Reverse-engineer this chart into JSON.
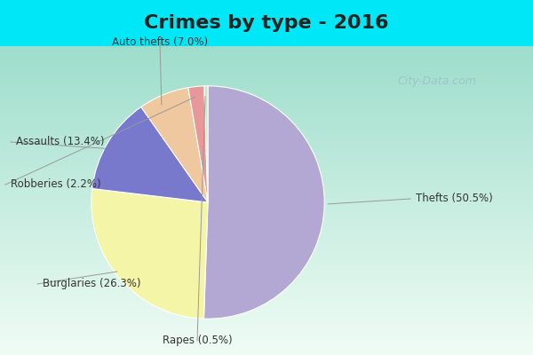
{
  "title": "Crimes by type - 2016",
  "labels": [
    "Thefts",
    "Burglaries",
    "Assaults",
    "Auto thefts",
    "Robberies",
    "Rapes"
  ],
  "values": [
    50.5,
    26.3,
    13.4,
    7.0,
    2.2,
    0.5
  ],
  "colors": [
    "#b3a8d4",
    "#f5f5a8",
    "#7878cc",
    "#f0c8a0",
    "#e89898",
    "#c8e8c8"
  ],
  "label_texts": [
    "Thefts (50.5%)",
    "Burglaries (26.3%)",
    "Assaults (13.4%)",
    "Auto thefts (7.0%)",
    "Robberies (2.2%)",
    "Rapes (0.5%)"
  ],
  "bg_top": "#00e8f8",
  "bg_gradient_top": "#e8f8f0",
  "bg_gradient_bottom": "#a8e0d0",
  "title_fontsize": 16,
  "watermark": "City-Data.com"
}
